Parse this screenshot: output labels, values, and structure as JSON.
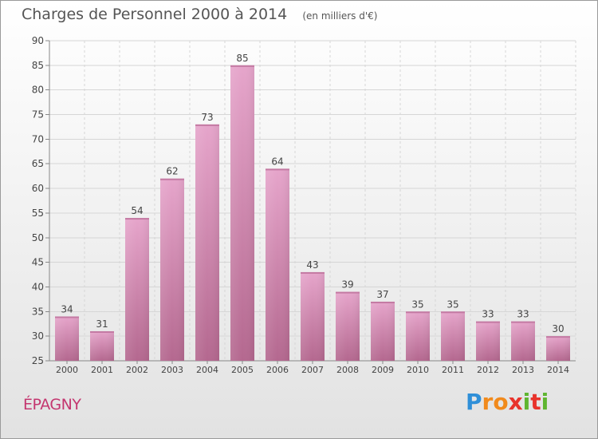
{
  "header": {
    "title": "Charges de Personnel 2000 à 2014",
    "subtitle": "(en milliers d'€)"
  },
  "footer": {
    "city": "ÉPAGNY",
    "brand": "Proxiti",
    "brand_colors": [
      "#2f8fd8",
      "#f18a1c",
      "#f18a1c",
      "#e8332c",
      "#5fb52f",
      "#e8332c",
      "#5fb52f"
    ]
  },
  "chart_data": {
    "type": "bar",
    "categories": [
      "2000",
      "2001",
      "2002",
      "2003",
      "2004",
      "2005",
      "2006",
      "2007",
      "2008",
      "2009",
      "2010",
      "2011",
      "2012",
      "2013",
      "2014"
    ],
    "values": [
      34,
      31,
      54,
      62,
      73,
      85,
      64,
      43,
      39,
      37,
      35,
      35,
      33,
      33,
      30
    ],
    "title": "Charges de Personnel 2000 à 2014",
    "subtitle": "(en milliers d'€)",
    "ylim": [
      25,
      90
    ],
    "yticks": [
      25,
      30,
      35,
      40,
      45,
      50,
      55,
      60,
      65,
      70,
      75,
      80,
      85,
      90
    ],
    "grid": true,
    "bar_color": "#d98bb6",
    "data_labels": true
  }
}
